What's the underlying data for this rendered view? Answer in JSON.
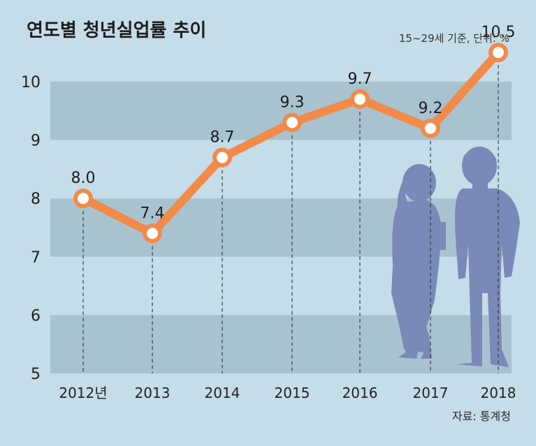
{
  "chart_data": {
    "type": "line",
    "title": "연도별 청년실업률 추이",
    "subtitle": "15~29세 기준, 단위: %",
    "source": "자료: 통계청",
    "categories": [
      "2012년",
      "2013",
      "2014",
      "2015",
      "2016",
      "2017",
      "2018"
    ],
    "series": [
      {
        "values": [
          8.0,
          7.4,
          8.7,
          9.3,
          9.7,
          9.2,
          10.5
        ]
      }
    ],
    "value_labels": [
      "8.0",
      "7.4",
      "8.7",
      "9.3",
      "9.7",
      "9.2",
      "10.5"
    ],
    "yticks": [
      "5",
      "6",
      "7",
      "8",
      "9",
      "10"
    ],
    "ylim": [
      5,
      10.5
    ],
    "grid": "alternating horizontal bands",
    "colors": {
      "background": "#c5dde9",
      "band": "#a8c3cf",
      "line": "#f28a4a",
      "marker_fill": "#ffffff",
      "silhouette": "#7a89b8"
    },
    "decoration": "silhouettes-of-two-young-people"
  }
}
